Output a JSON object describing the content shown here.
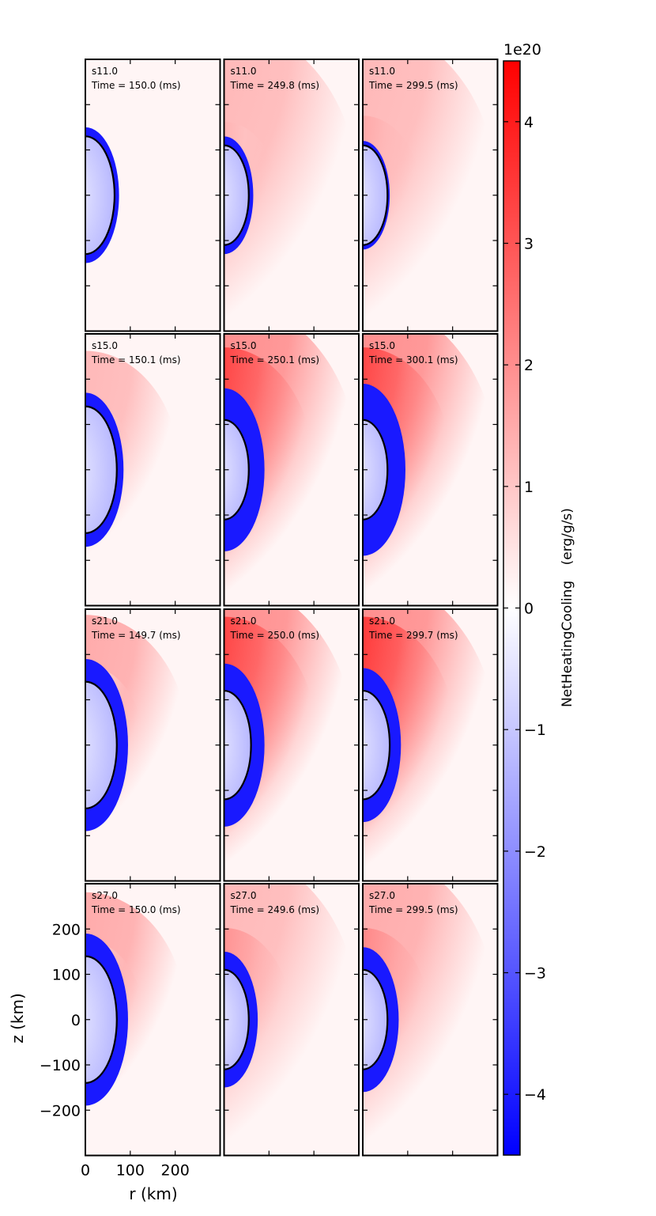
{
  "chart_data": {
    "type": "heatmap",
    "variable": "NetHeatingCooling",
    "units": "(erg/g/s)",
    "colorbar": {
      "label": "NetHeatingCooling",
      "units": "(erg/g/s)",
      "multiplier": "1e20",
      "ticks": [
        -4,
        -3,
        -2,
        -1,
        0,
        1,
        2,
        3,
        4
      ],
      "range": [
        -4.5,
        4.5
      ],
      "colormap": "bwr",
      "colors": {
        "negative": "#0000ff",
        "zero": "#ffffff",
        "positive": "#ff0000"
      }
    },
    "xaxis": {
      "label": "r (km)",
      "ticks": [
        0,
        100,
        200
      ],
      "range": [
        0,
        300
      ]
    },
    "yaxis": {
      "label": "z (km)",
      "ticks": [
        200,
        100,
        0,
        -100,
        -200
      ],
      "range": [
        -300,
        300
      ]
    },
    "panels": [
      {
        "model": "s11.0",
        "time": "Time = 150.0 (ms)",
        "row": 0,
        "col": 0,
        "pns_radius": 65,
        "cool_extent": 75,
        "heat_extent": 0,
        "halo_extent": 0,
        "halo_level": 0.15,
        "heat_level": 0
      },
      {
        "model": "s11.0",
        "time": "Time = 249.8 (ms)",
        "row": 0,
        "col": 1,
        "pns_radius": 55,
        "cool_extent": 65,
        "heat_extent": 120,
        "halo_extent": 300,
        "halo_level": 0.25,
        "heat_level": 0.35
      },
      {
        "model": "s11.0",
        "time": "Time = 299.5 (ms)",
        "row": 0,
        "col": 2,
        "pns_radius": 55,
        "cool_extent": 60,
        "heat_extent": 130,
        "halo_extent": 300,
        "halo_level": 0.25,
        "heat_level": 0.4
      },
      {
        "model": "s15.0",
        "time": "Time = 150.1 (ms)",
        "row": 1,
        "col": 0,
        "pns_radius": 70,
        "cool_extent": 85,
        "heat_extent": 110,
        "halo_extent": 210,
        "halo_level": 0.25,
        "heat_level": 0.3
      },
      {
        "model": "s15.0",
        "time": "Time = 250.1 (ms)",
        "row": 1,
        "col": 1,
        "pns_radius": 55,
        "cool_extent": 90,
        "heat_extent": 200,
        "halo_extent": 300,
        "halo_level": 0.4,
        "heat_level": 0.85
      },
      {
        "model": "s15.0",
        "time": "Time = 300.1 (ms)",
        "row": 1,
        "col": 2,
        "pns_radius": 55,
        "cool_extent": 95,
        "heat_extent": 200,
        "halo_extent": 300,
        "halo_level": 0.4,
        "heat_level": 0.85
      },
      {
        "model": "s21.0",
        "time": "Time = 149.7 (ms)",
        "row": 2,
        "col": 0,
        "pns_radius": 70,
        "cool_extent": 95,
        "heat_extent": 130,
        "halo_extent": 230,
        "halo_level": 0.3,
        "heat_level": 0.3
      },
      {
        "model": "s21.0",
        "time": "Time = 250.0 (ms)",
        "row": 2,
        "col": 1,
        "pns_radius": 60,
        "cool_extent": 90,
        "heat_extent": 210,
        "halo_extent": 290,
        "halo_level": 0.4,
        "heat_level": 0.85
      },
      {
        "model": "s21.0",
        "time": "Time = 299.7 (ms)",
        "row": 2,
        "col": 2,
        "pns_radius": 60,
        "cool_extent": 85,
        "heat_extent": 210,
        "halo_extent": 300,
        "halo_level": 0.4,
        "heat_level": 0.9
      },
      {
        "model": "s27.0",
        "time": "Time = 150.0 (ms)",
        "row": 3,
        "col": 0,
        "pns_radius": 70,
        "cool_extent": 95,
        "heat_extent": 130,
        "halo_extent": 225,
        "halo_level": 0.3,
        "heat_level": 0.35
      },
      {
        "model": "s27.0",
        "time": "Time = 249.6 (ms)",
        "row": 3,
        "col": 1,
        "pns_radius": 55,
        "cool_extent": 75,
        "heat_extent": 150,
        "halo_extent": 300,
        "halo_level": 0.25,
        "heat_level": 0.5
      },
      {
        "model": "s27.0",
        "time": "Time = 299.5 (ms)",
        "row": 3,
        "col": 2,
        "pns_radius": 55,
        "cool_extent": 80,
        "heat_extent": 150,
        "halo_extent": 300,
        "halo_level": 0.3,
        "heat_level": 0.55
      }
    ]
  }
}
